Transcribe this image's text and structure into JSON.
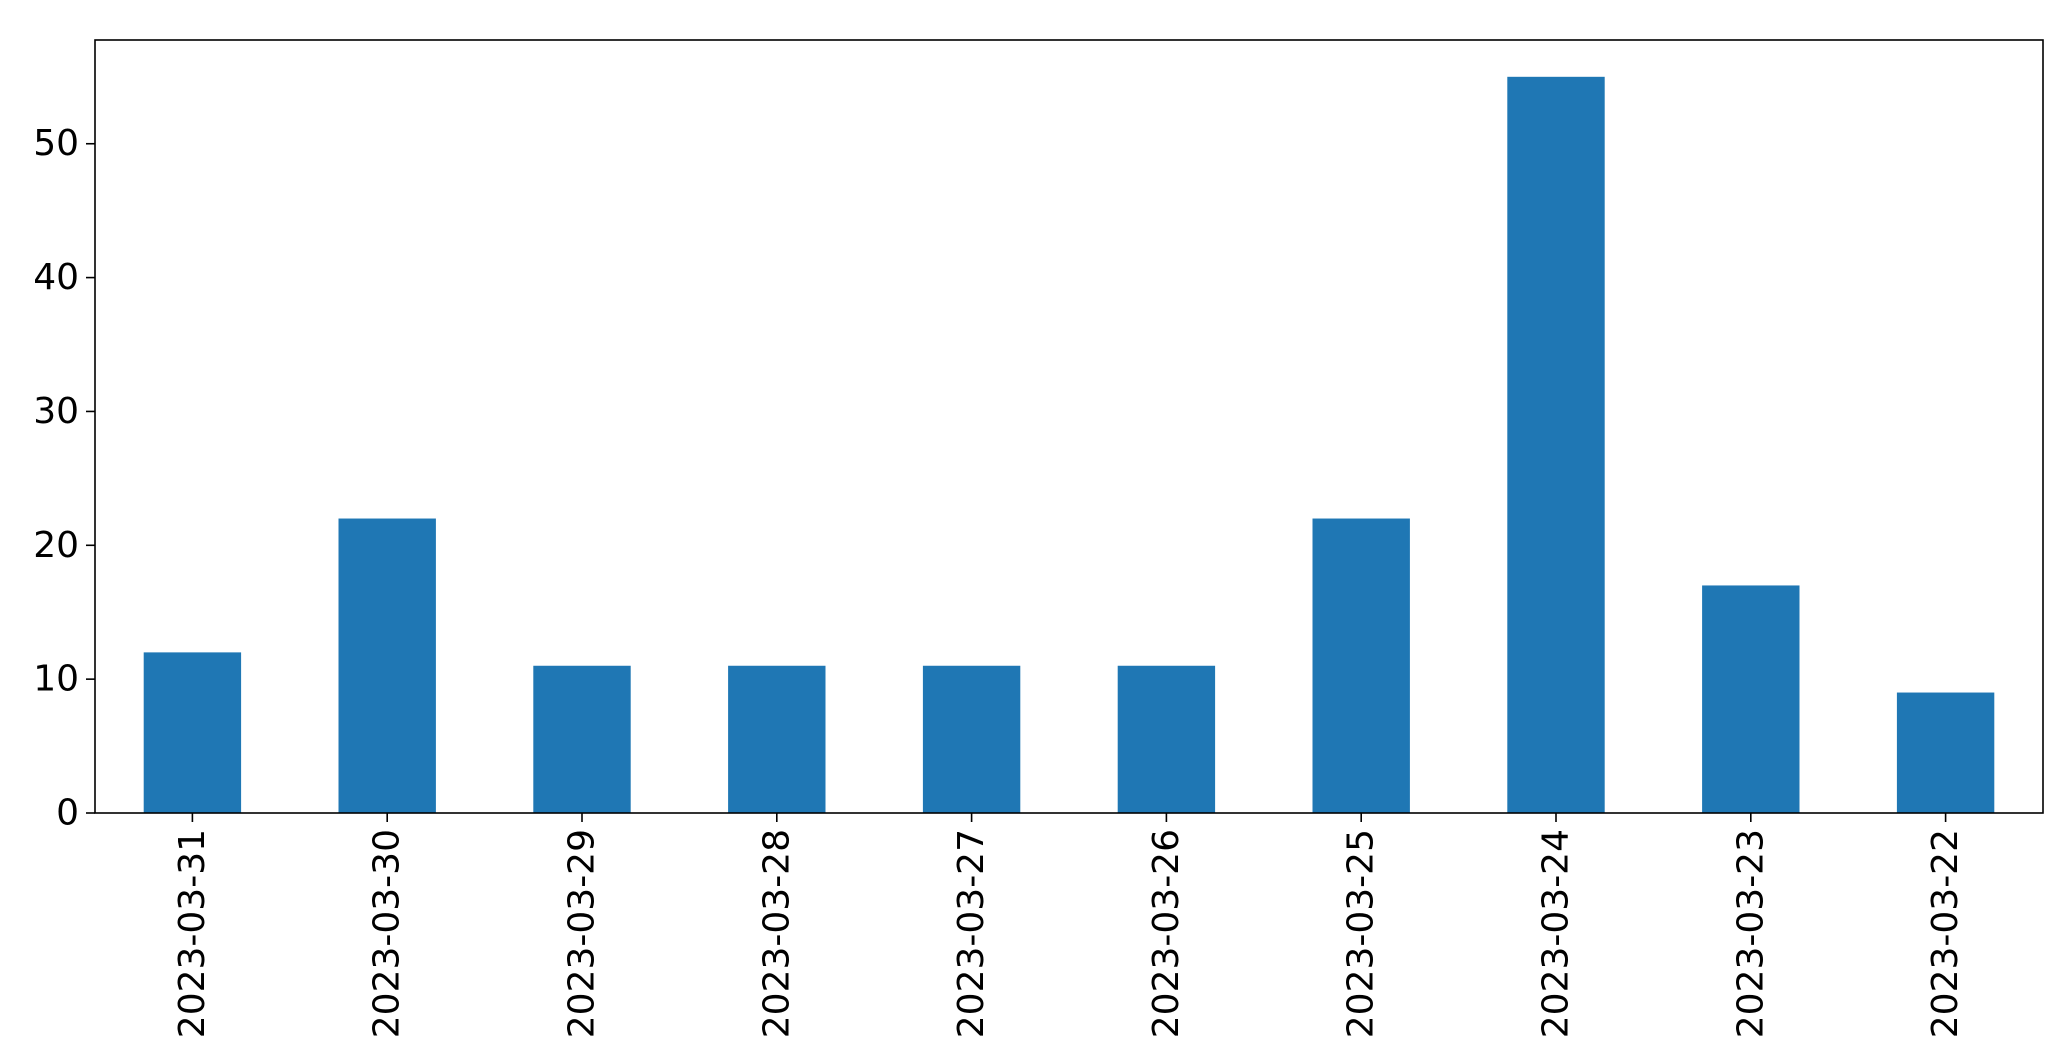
{
  "chart_data": {
    "type": "bar",
    "categories": [
      "2023-03-31",
      "2023-03-30",
      "2023-03-29",
      "2023-03-28",
      "2023-03-27",
      "2023-03-26",
      "2023-03-25",
      "2023-03-24",
      "2023-03-23",
      "2023-03-22"
    ],
    "values": [
      12,
      22,
      11,
      11,
      11,
      11,
      22,
      55,
      17,
      9
    ],
    "title": "",
    "xlabel": "",
    "ylabel": "",
    "ylim": [
      0,
      57.75
    ],
    "yticks": [
      0,
      10,
      20,
      30,
      40,
      50
    ],
    "ytick_labels": [
      "0",
      "10",
      "20",
      "30",
      "40",
      "50"
    ],
    "xtick_rotation": "vertical",
    "grid": false,
    "legend": "none",
    "bar_color": "#1f77b4"
  }
}
